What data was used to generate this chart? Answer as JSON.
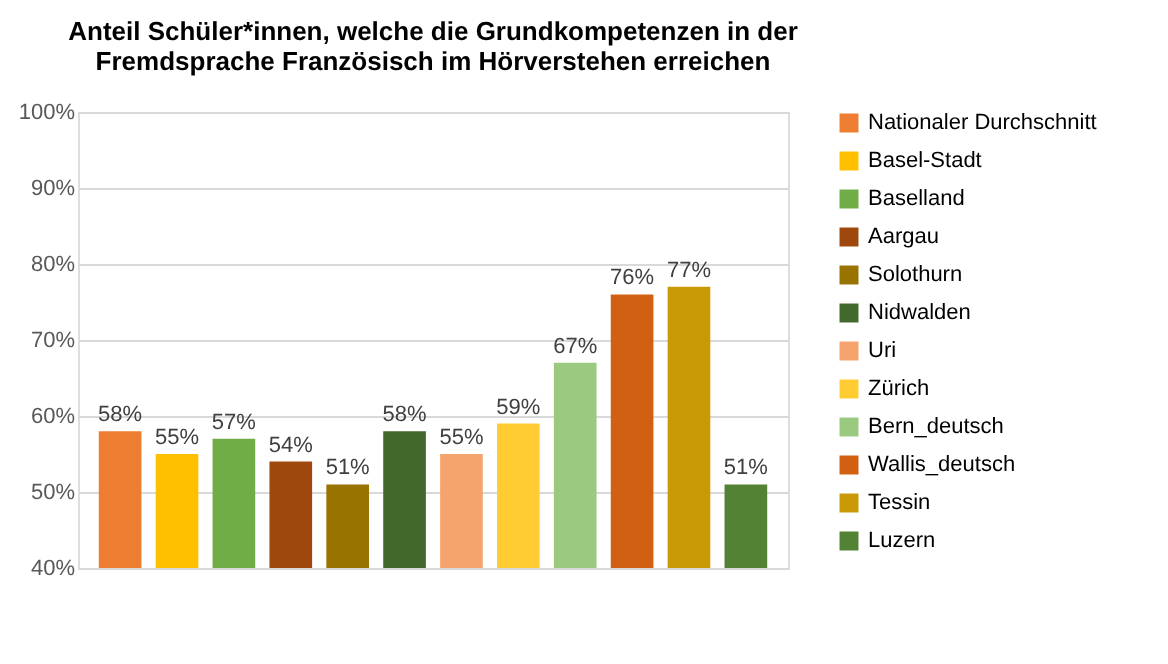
{
  "chart_data": {
    "type": "bar",
    "title": [
      "Anteil Schüler*innen, welche die Grundkompetenzen in der",
      "Fremdsprache Französisch im Hörverstehen erreichen"
    ],
    "categories": [
      null
    ],
    "series": [
      {
        "name": "Nationaler Durchschnitt",
        "color": "#ed7d31",
        "values": [
          58
        ],
        "value_labels": [
          "58%"
        ]
      },
      {
        "name": "Basel-Stadt",
        "color": "#ffc000",
        "values": [
          55
        ],
        "value_labels": [
          "55%"
        ]
      },
      {
        "name": "Baselland",
        "color": "#70ad47",
        "values": [
          57
        ],
        "value_labels": [
          "57%"
        ]
      },
      {
        "name": "Aargau",
        "color": "#9e480e",
        "values": [
          54
        ],
        "value_labels": [
          "54%"
        ]
      },
      {
        "name": "Solothurn",
        "color": "#997300",
        "values": [
          51
        ],
        "value_labels": [
          "51%"
        ]
      },
      {
        "name": "Nidwalden",
        "color": "#43682b",
        "values": [
          58
        ],
        "value_labels": [
          "58%"
        ]
      },
      {
        "name": "Uri",
        "color": "#f4a46c",
        "values": [
          55
        ],
        "value_labels": [
          "55%"
        ]
      },
      {
        "name": "Zürich",
        "color": "#ffcd33",
        "values": [
          59
        ],
        "value_labels": [
          "59%"
        ]
      },
      {
        "name": "Bern_deutsch",
        "color": "#9bc97f",
        "values": [
          67
        ],
        "value_labels": [
          "67%"
        ]
      },
      {
        "name": "Wallis_deutsch",
        "color": "#d26012",
        "values": [
          76
        ],
        "value_labels": [
          "76%"
        ]
      },
      {
        "name": "Tessin",
        "color": "#c99a06",
        "values": [
          77
        ],
        "value_labels": [
          "77%"
        ]
      },
      {
        "name": "Luzern",
        "color": "#548235",
        "values": [
          51
        ],
        "value_labels": [
          "51%"
        ]
      }
    ],
    "ylim": [
      40,
      100
    ],
    "yticks": [
      {
        "value": 40,
        "label": "40%"
      },
      {
        "value": 50,
        "label": "50%"
      },
      {
        "value": 60,
        "label": "60%"
      },
      {
        "value": 70,
        "label": "70%"
      },
      {
        "value": 80,
        "label": "80%"
      },
      {
        "value": 90,
        "label": "90%"
      },
      {
        "value": 100,
        "label": "100%"
      }
    ],
    "grid": "y",
    "legend": "right",
    "tick_labels": "y"
  }
}
